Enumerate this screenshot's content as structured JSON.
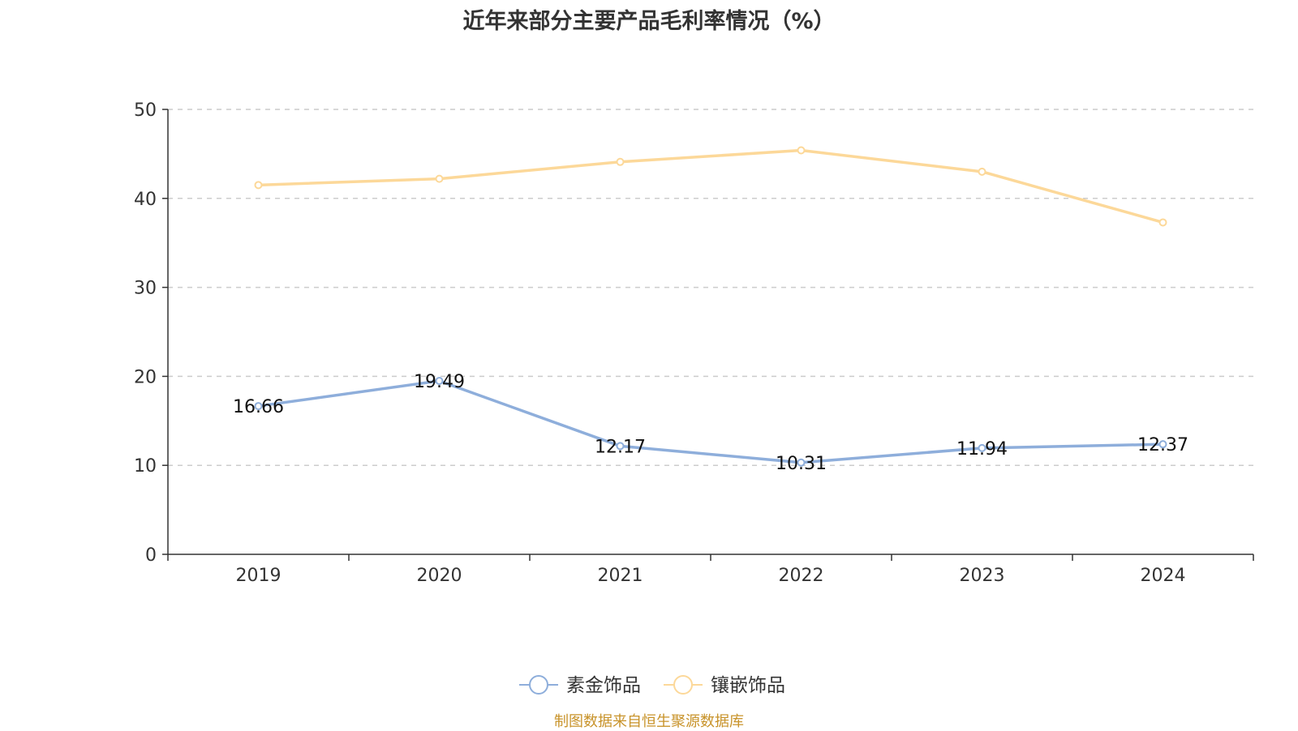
{
  "title": "近年来部分主要产品毛利率情况（%）",
  "source": "制图数据来自恒生聚源数据库",
  "chart_data": {
    "type": "line",
    "title": "近年来部分主要产品毛利率情况（%）",
    "categories": [
      "2019",
      "2020",
      "2021",
      "2022",
      "2023",
      "2024"
    ],
    "ylim": [
      0,
      50
    ],
    "yticks": [
      0,
      10,
      20,
      30,
      40,
      50
    ],
    "grid": true,
    "legend": "bottom-center",
    "series": [
      {
        "name": "素金饰品",
        "color": "#8eaedb",
        "values": [
          16.66,
          19.49,
          12.17,
          10.31,
          11.94,
          12.37
        ],
        "labels": [
          "16.66",
          "19.49",
          "12.17",
          "10.31",
          "11.94",
          "12.37"
        ]
      },
      {
        "name": "镶嵌饰品",
        "color": "#fcd899",
        "values": [
          41.5,
          42.2,
          44.1,
          45.4,
          43.0,
          37.3
        ],
        "labels": []
      }
    ]
  }
}
